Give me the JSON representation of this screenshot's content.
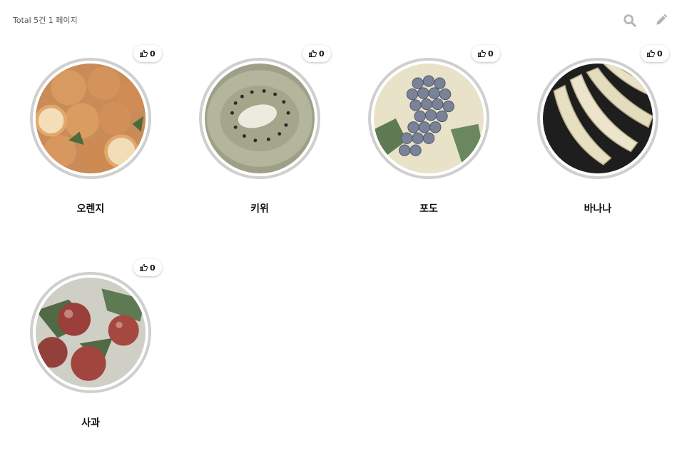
{
  "header": {
    "total_text": "Total 5건 1 페이지",
    "search_icon": "search-icon",
    "write_icon": "pencil-icon"
  },
  "gallery": {
    "items": [
      {
        "title": "오렌지",
        "likes": "0",
        "image": "orange-photo",
        "color": "#d9a06a"
      },
      {
        "title": "키위",
        "likes": "0",
        "image": "kiwi-photo",
        "color": "#b9bba1"
      },
      {
        "title": "포도",
        "likes": "0",
        "image": "grape-photo",
        "color": "#7c8499"
      },
      {
        "title": "바나나",
        "likes": "0",
        "image": "banana-photo",
        "color": "#e6dfc4"
      },
      {
        "title": "사과",
        "likes": "0",
        "image": "apple-photo",
        "color": "#9e4b44"
      }
    ]
  },
  "colors": {
    "icon_gray": "#b5b5b5",
    "ring_gray": "#cfcfcf"
  }
}
